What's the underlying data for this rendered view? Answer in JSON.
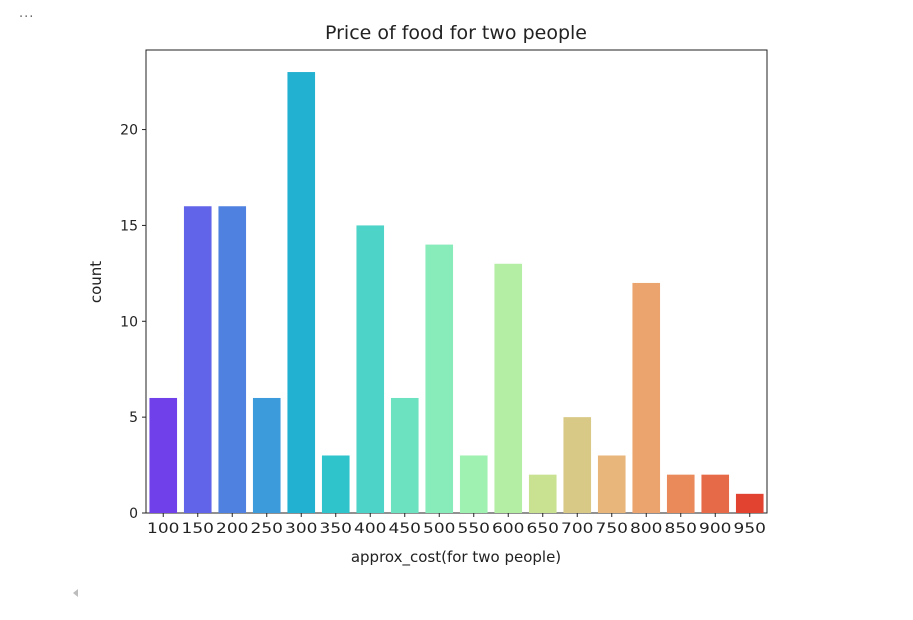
{
  "cell": {
    "ellipsis": "...",
    "scroll_icon": "scroll-left-arrow-icon"
  },
  "chart_data": {
    "type": "bar",
    "title": "Price of food for two people",
    "xlabel": "approx_cost(for two people)",
    "ylabel": "count",
    "categories": [
      "100",
      "150",
      "200",
      "250",
      "300",
      "350",
      "400",
      "450",
      "500",
      "550",
      "600",
      "650",
      "700",
      "750",
      "800",
      "850",
      "900",
      "950"
    ],
    "values": [
      6,
      16,
      16,
      6,
      23,
      3,
      15,
      6,
      14,
      3,
      13,
      2,
      5,
      3,
      12,
      2,
      2,
      1
    ],
    "colors": [
      "#7040ea",
      "#6163e8",
      "#4f81e0",
      "#3b9bdb",
      "#22b1d0",
      "#2fc3cc",
      "#4dd3c7",
      "#6ce2c0",
      "#87ebba",
      "#9ef1b0",
      "#b3eea4",
      "#c8e292",
      "#d8c986",
      "#e8b57a",
      "#eba46e",
      "#ea8a5a",
      "#e66a48",
      "#e24230"
    ],
    "yticks": [
      0,
      5,
      10,
      15,
      20
    ],
    "ylim": [
      0,
      24.15
    ],
    "grid": false,
    "legend": "none"
  }
}
